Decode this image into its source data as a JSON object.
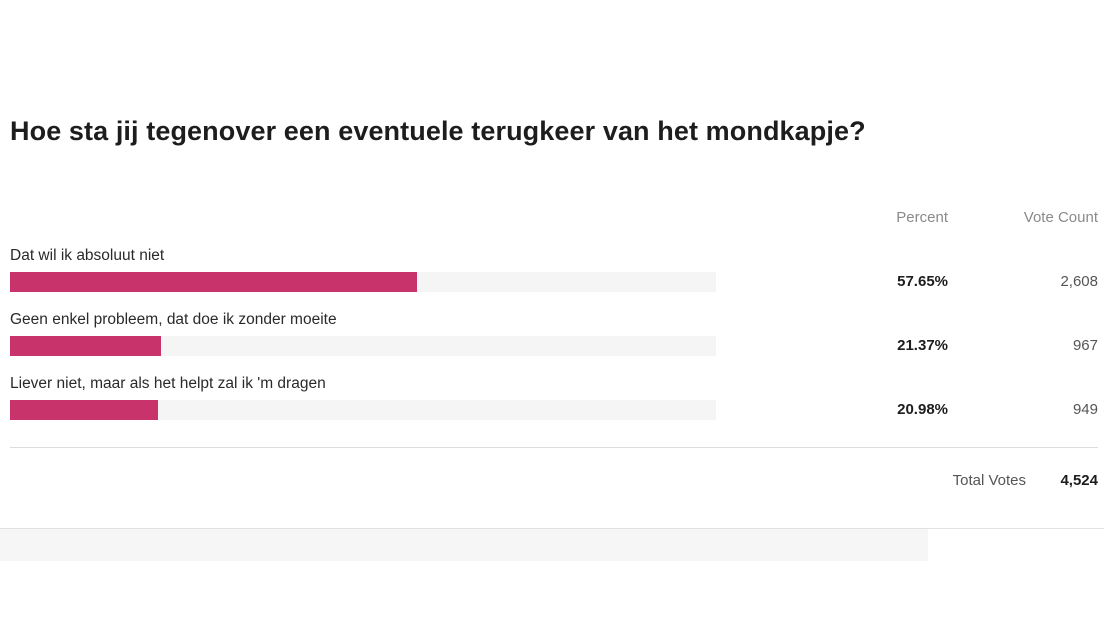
{
  "chart_data": {
    "type": "bar",
    "title": "Hoe sta jij tegenover een eventuele terugkeer van het mondkapje?",
    "columns": {
      "percent": "Percent",
      "votes": "Vote Count"
    },
    "categories": [
      "Dat wil ik absoluut niet",
      "Geen enkel probleem, dat doe ik zonder moeite",
      "Liever niet, maar als het helpt zal ik 'm dragen"
    ],
    "values": [
      57.65,
      21.37,
      20.98
    ],
    "percent_labels": [
      "57.65%",
      "21.37%",
      "20.98%"
    ],
    "vote_counts": [
      "2,608",
      "967",
      "949"
    ],
    "xlim": [
      0,
      100
    ],
    "grid": false,
    "bar_color": "#c8336b",
    "track_color": "#f5f5f5",
    "total": {
      "label": "Total Votes",
      "value": "4,524"
    }
  }
}
